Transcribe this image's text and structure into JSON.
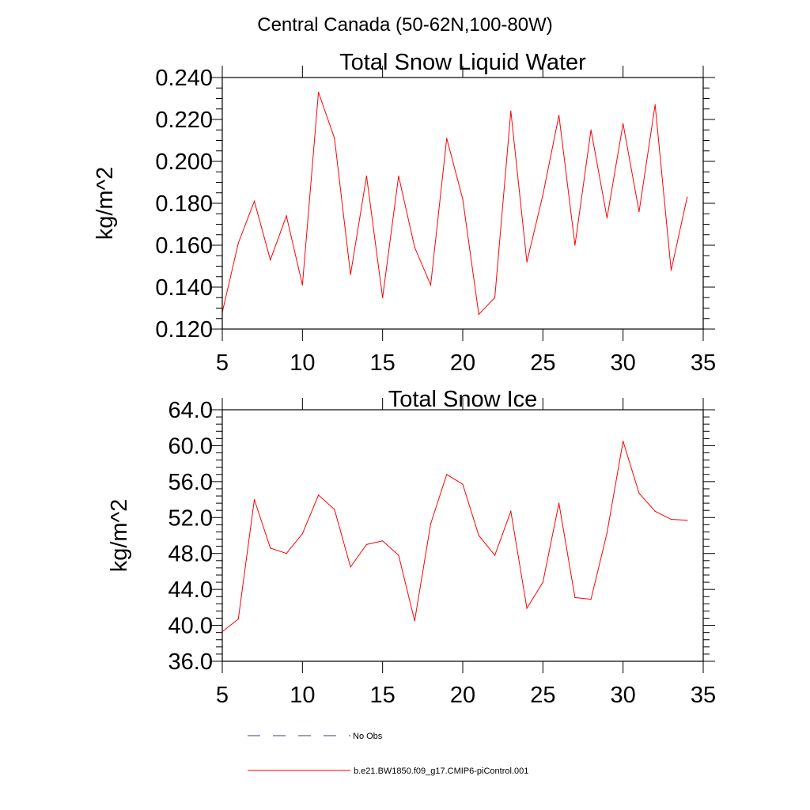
{
  "page_title": "Central Canada (50-62N,100-80W)",
  "chart_data": [
    {
      "type": "line",
      "title": "Total Snow Liquid Water",
      "ylabel": "kg/m^2",
      "xlabel": "",
      "xlim": [
        5,
        35
      ],
      "ylim": [
        0.12,
        0.24
      ],
      "xticks": [
        "5",
        "10",
        "15",
        "20",
        "25",
        "30",
        "35"
      ],
      "xtick_values": [
        5,
        10,
        15,
        20,
        25,
        30,
        35
      ],
      "yticks": [
        "0.120",
        "0.140",
        "0.160",
        "0.180",
        "0.200",
        "0.220",
        "0.240"
      ],
      "ytick_values": [
        0.12,
        0.14,
        0.16,
        0.18,
        0.2,
        0.22,
        0.24
      ],
      "grid": false,
      "series": [
        {
          "name": "b.e21.BW1850.f09_g17.CMIP6-piControl.001",
          "color": "#ff0000",
          "x": [
            5,
            6,
            7,
            8,
            9,
            10,
            11,
            12,
            13,
            14,
            15,
            16,
            17,
            18,
            19,
            20,
            21,
            22,
            23,
            24,
            25,
            26,
            27,
            28,
            29,
            30,
            31,
            32,
            33,
            34
          ],
          "y": [
            0.128,
            0.161,
            0.181,
            0.153,
            0.174,
            0.141,
            0.233,
            0.211,
            0.146,
            0.193,
            0.135,
            0.193,
            0.159,
            0.141,
            0.211,
            0.182,
            0.127,
            0.135,
            0.224,
            0.152,
            0.184,
            0.222,
            0.16,
            0.215,
            0.173,
            0.218,
            0.176,
            0.227,
            0.148,
            0.183
          ]
        }
      ]
    },
    {
      "type": "line",
      "title": "Total Snow Ice",
      "ylabel": "kg/m^2",
      "xlabel": "",
      "xlim": [
        5,
        35
      ],
      "ylim": [
        36.0,
        64.0
      ],
      "xticks": [
        "5",
        "10",
        "15",
        "20",
        "25",
        "30",
        "35"
      ],
      "xtick_values": [
        5,
        10,
        15,
        20,
        25,
        30,
        35
      ],
      "yticks": [
        "36.0",
        "40.0",
        "44.0",
        "48.0",
        "52.0",
        "56.0",
        "60.0",
        "64.0"
      ],
      "ytick_values": [
        36,
        40,
        44,
        48,
        52,
        56,
        60,
        64
      ],
      "grid": false,
      "series": [
        {
          "name": "b.e21.BW1850.f09_g17.CMIP6-piControl.001",
          "color": "#ff0000",
          "x": [
            5,
            6,
            7,
            8,
            9,
            10,
            11,
            12,
            13,
            14,
            15,
            16,
            17,
            18,
            19,
            20,
            21,
            22,
            23,
            24,
            25,
            26,
            27,
            28,
            29,
            30,
            31,
            32,
            33,
            34
          ],
          "y": [
            39.3,
            40.7,
            54.0,
            48.6,
            48.0,
            50.2,
            54.5,
            52.9,
            46.5,
            49.0,
            49.4,
            47.8,
            40.5,
            51.3,
            56.8,
            55.7,
            50.0,
            47.8,
            52.7,
            41.9,
            44.8,
            53.6,
            43.1,
            42.9,
            50.3,
            60.5,
            54.7,
            52.7,
            51.8,
            51.7
          ]
        }
      ]
    }
  ],
  "legend": {
    "placement": "bottom-left",
    "entries": [
      {
        "label": "No Obs",
        "color": "#3b3b8f",
        "style": "dashed"
      },
      {
        "label": "b.e21.BW1850.f09_g17.CMIP6-piControl.001",
        "color": "#ff0000",
        "style": "solid"
      }
    ]
  }
}
